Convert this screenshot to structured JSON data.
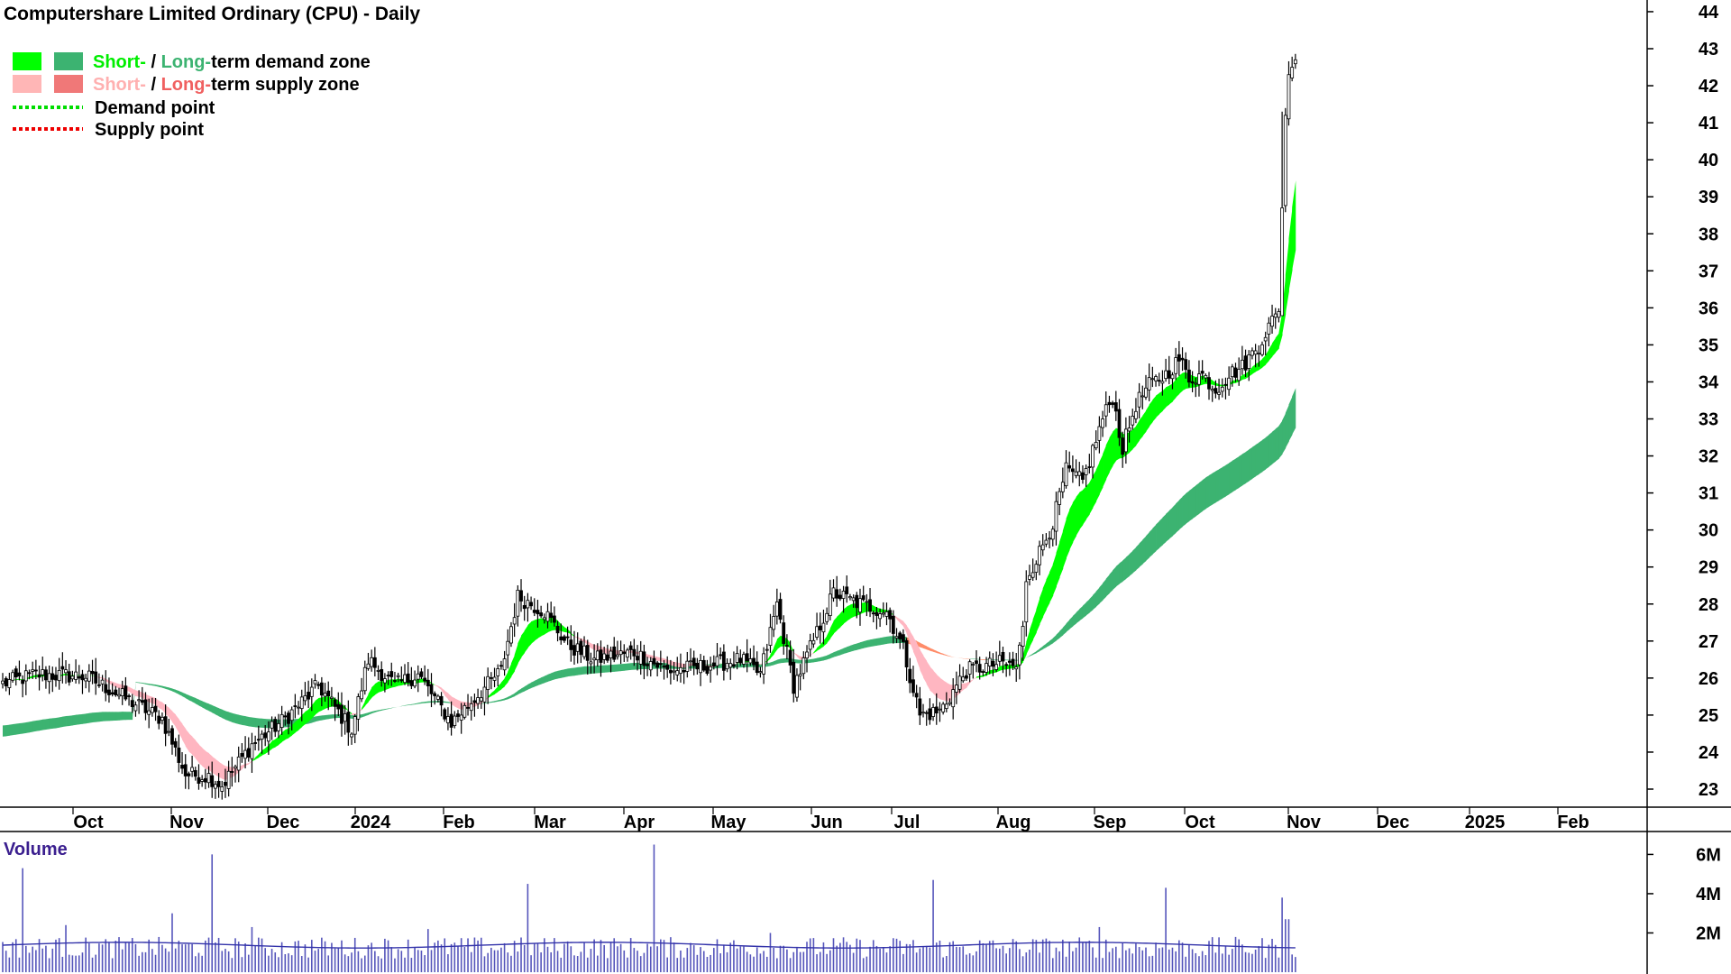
{
  "title": "Computershare Limited Ordinary (CPU) - Daily",
  "legend": [
    {
      "id": "demand",
      "swatches": [
        "#00ff00",
        "#3cb371"
      ],
      "short": "Short-",
      "sep": " / ",
      "long": "Long-",
      "rest": "term demand zone",
      "short_color": "#00ee00",
      "long_color": "#3cb371"
    },
    {
      "id": "supply",
      "swatches": [
        "#ffb6b6",
        "#f07878"
      ],
      "short": "Short-",
      "sep": " / ",
      "long": "Long-",
      "rest": "term supply zone",
      "short_color": "#ffb0b0",
      "long_color": "#f06060"
    },
    {
      "id": "dpoint",
      "line_color": "#00dd00",
      "label": "Demand point"
    },
    {
      "id": "spoint",
      "line_color": "#ee0000",
      "label": "Supply point"
    }
  ],
  "colors": {
    "short_demand": "#00ff00",
    "long_demand": "#3cb371",
    "supply": "#ff8c69",
    "short_supply": "#ffb6c1",
    "candle": "#000000",
    "volume_bar": "#5555bb",
    "volume_avg": "#3333aa",
    "volume_title": "#3b1f8f"
  },
  "chart_data": {
    "type": "candlestick",
    "ylim": [
      22.5,
      44.2
    ],
    "yticks": [
      23,
      24,
      25,
      26,
      27,
      28,
      29,
      30,
      31,
      32,
      33,
      34,
      35,
      36,
      37,
      38,
      39,
      40,
      41,
      42,
      43,
      44
    ],
    "xlabels": [
      "Oct",
      "Nov",
      "Dec",
      "2024",
      "Feb",
      "Mar",
      "Apr",
      "May",
      "Jun",
      "Jul",
      "Aug",
      "Sep",
      "Oct",
      "Nov",
      "Dec",
      "2025",
      "Feb"
    ],
    "anchors": [
      {
        "i": 0,
        "c": 25.85
      },
      {
        "i": 10,
        "c": 26.1
      },
      {
        "i": 25,
        "c": 26.05
      },
      {
        "i": 40,
        "c": 25.3
      },
      {
        "i": 48,
        "c": 24.9
      },
      {
        "i": 55,
        "c": 23.4
      },
      {
        "i": 62,
        "c": 23.35
      },
      {
        "i": 66,
        "c": 23.1
      },
      {
        "i": 75,
        "c": 24.2
      },
      {
        "i": 85,
        "c": 24.9
      },
      {
        "i": 95,
        "c": 25.8
      },
      {
        "i": 105,
        "c": 24.6
      },
      {
        "i": 110,
        "c": 26.5
      },
      {
        "i": 118,
        "c": 25.8
      },
      {
        "i": 125,
        "c": 26.1
      },
      {
        "i": 135,
        "c": 24.8
      },
      {
        "i": 150,
        "c": 26.2
      },
      {
        "i": 155,
        "c": 28.2
      },
      {
        "i": 163,
        "c": 27.8
      },
      {
        "i": 170,
        "c": 26.9
      },
      {
        "i": 178,
        "c": 26.5
      },
      {
        "i": 190,
        "c": 26.7
      },
      {
        "i": 200,
        "c": 26.2
      },
      {
        "i": 210,
        "c": 26.3
      },
      {
        "i": 222,
        "c": 26.5
      },
      {
        "i": 228,
        "c": 26.1
      },
      {
        "i": 233,
        "c": 28.0
      },
      {
        "i": 238,
        "c": 25.8
      },
      {
        "i": 244,
        "c": 27.0
      },
      {
        "i": 250,
        "c": 28.3
      },
      {
        "i": 258,
        "c": 28.0
      },
      {
        "i": 266,
        "c": 27.8
      },
      {
        "i": 271,
        "c": 26.8
      },
      {
        "i": 276,
        "c": 25.0
      },
      {
        "i": 282,
        "c": 25.1
      },
      {
        "i": 290,
        "c": 26.2
      },
      {
        "i": 300,
        "c": 26.4
      },
      {
        "i": 305,
        "c": 26.3
      },
      {
        "i": 307,
        "c": 27.3
      },
      {
        "i": 308,
        "c": 28.7
      },
      {
        "i": 312,
        "c": 29.4
      },
      {
        "i": 316,
        "c": 30.2
      },
      {
        "i": 320,
        "c": 31.6
      },
      {
        "i": 325,
        "c": 31.3
      },
      {
        "i": 331,
        "c": 33.0
      },
      {
        "i": 334,
        "c": 33.6
      },
      {
        "i": 337,
        "c": 32.2
      },
      {
        "i": 341,
        "c": 33.4
      },
      {
        "i": 345,
        "c": 33.9
      },
      {
        "i": 350,
        "c": 34.2
      },
      {
        "i": 354,
        "c": 34.6
      },
      {
        "i": 357,
        "c": 34.1
      },
      {
        "i": 361,
        "c": 34.2
      },
      {
        "i": 365,
        "c": 33.8
      },
      {
        "i": 369,
        "c": 34.2
      },
      {
        "i": 373,
        "c": 34.4
      },
      {
        "i": 378,
        "c": 35.0
      },
      {
        "i": 381,
        "c": 35.5
      },
      {
        "i": 384,
        "c": 35.9
      },
      {
        "i": 385,
        "c": 38.7
      },
      {
        "i": 386,
        "c": 41.2
      },
      {
        "i": 387,
        "c": 42.3
      },
      {
        "i": 388,
        "c": 42.5
      },
      {
        "i": 389,
        "c": 42.7
      }
    ],
    "volume": {
      "title": "Volume",
      "yticks": [
        {
          "label": "2M",
          "value": 2000000
        },
        {
          "label": "4M",
          "value": 4000000
        },
        {
          "label": "6M",
          "value": 6000000
        }
      ],
      "ymax": 6800000,
      "average": 1450000,
      "spikes": [
        {
          "i": 6,
          "v": 5300000
        },
        {
          "i": 19,
          "v": 2400000
        },
        {
          "i": 51,
          "v": 3000000
        },
        {
          "i": 63,
          "v": 6000000
        },
        {
          "i": 75,
          "v": 2300000
        },
        {
          "i": 128,
          "v": 2200000
        },
        {
          "i": 158,
          "v": 4500000
        },
        {
          "i": 196,
          "v": 6500000
        },
        {
          "i": 231,
          "v": 2000000
        },
        {
          "i": 280,
          "v": 4700000
        },
        {
          "i": 330,
          "v": 2300000
        },
        {
          "i": 350,
          "v": 4300000
        },
        {
          "i": 385,
          "v": 3800000
        },
        {
          "i": 386,
          "v": 2700000
        },
        {
          "i": 387,
          "v": 2700000
        }
      ]
    }
  }
}
